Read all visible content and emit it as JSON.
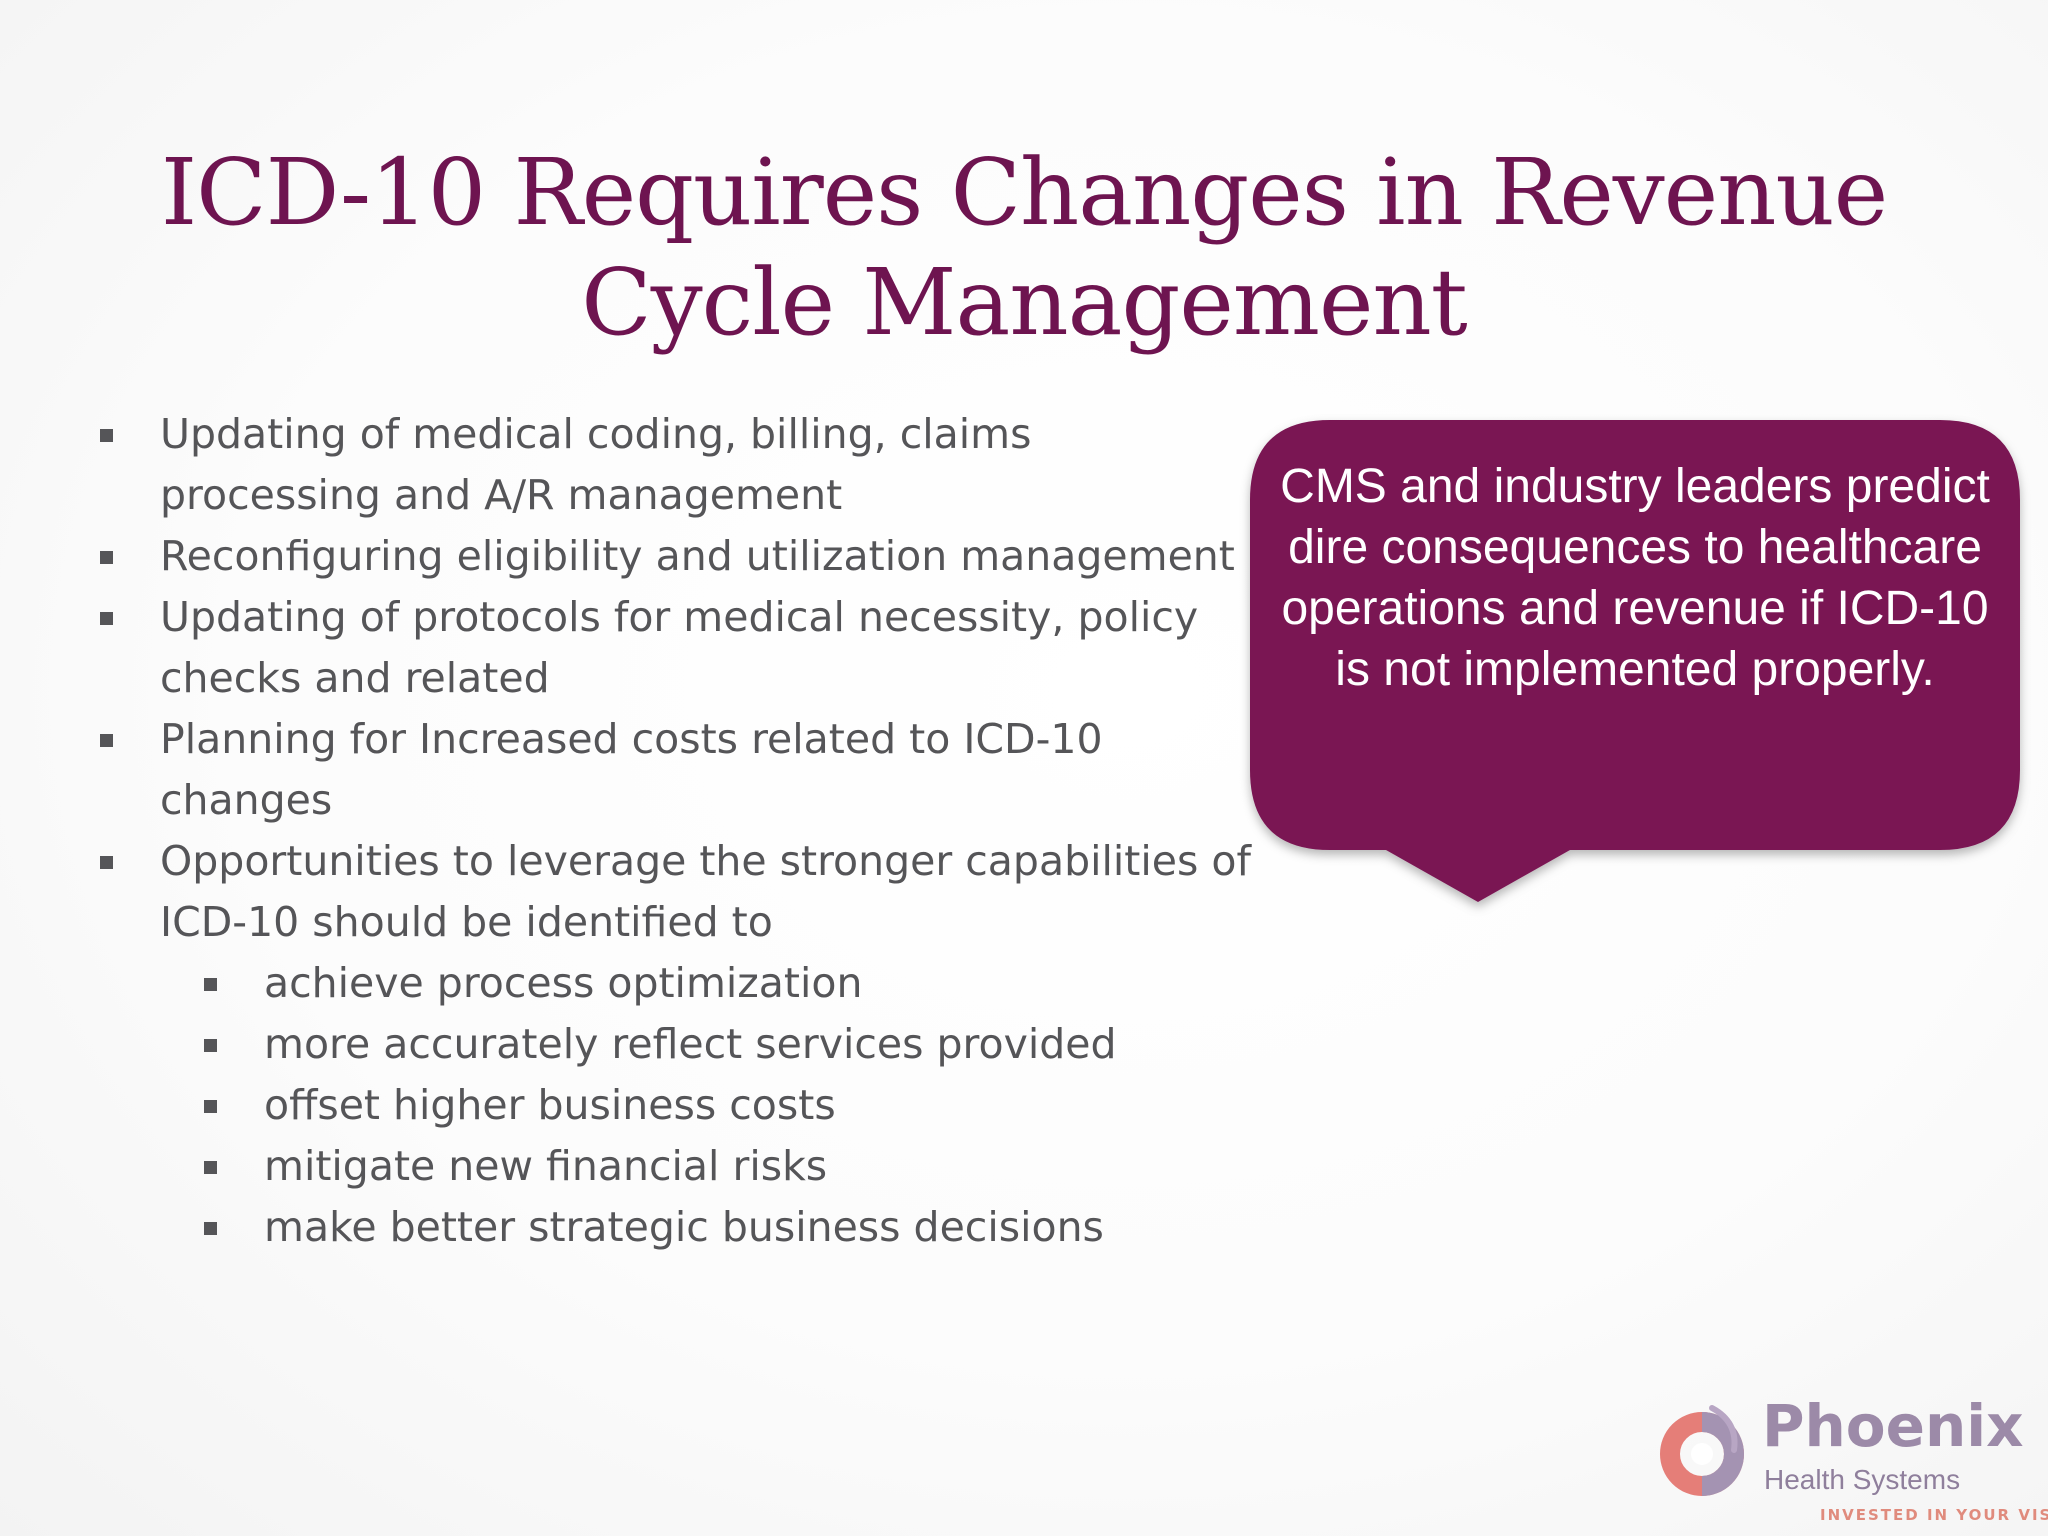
{
  "slide": {
    "title_line1": "ICD-10 Requires Changes in Revenue",
    "title_line2": "Cycle Management",
    "bullets": [
      "Updating of medical coding, billing, claims processing and A/R management",
      "Reconfiguring eligibility and utilization management",
      "Updating of protocols for medical necessity, policy checks and related",
      "Planning for Increased costs related to ICD-10 changes",
      "Opportunities to leverage the stronger capabilities of ICD-10 should be identified to"
    ],
    "sub_bullets": [
      "achieve process optimization",
      "more accurately reflect services provided",
      "offset higher business costs",
      "mitigate new financial risks",
      "make better strategic business decisions"
    ],
    "callout": {
      "text": "CMS and industry leaders predict dire consequences to healthcare operations and revenue if ICD-10 is not implemented properly.",
      "fill_color": "#7a1553"
    },
    "logo": {
      "name": "Phoenix",
      "subtitle": "Health Systems",
      "tagline": "INVESTED IN YOUR VISION",
      "icon": "phoenix-logo-icon"
    }
  }
}
